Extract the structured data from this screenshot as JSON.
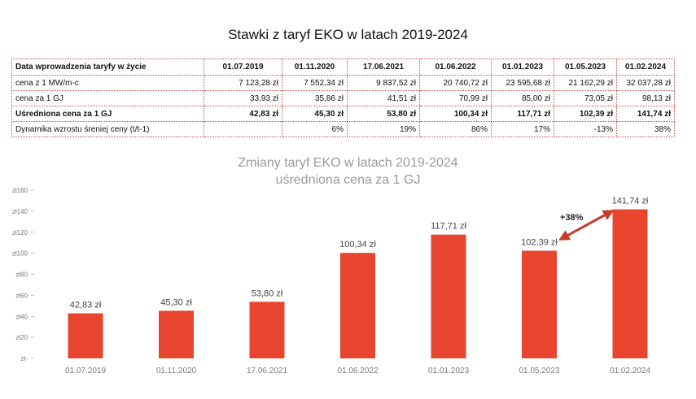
{
  "table": {
    "title": "Stawki z taryf EKO w latach 2019-2024",
    "header_label": "Data wprowadzenia taryfy w życie",
    "dates": [
      "01.07.2019",
      "01.11.2020",
      "17.06.2021",
      "01.06.2022",
      "01.01.2023",
      "01.05.2023",
      "01.02.2024"
    ],
    "rows": [
      {
        "label": "cena z 1 MW/m-c",
        "bold": false,
        "values": [
          "7 123,28 zł",
          "7 552,34 zł",
          "9 837,52 zł",
          "20 740,72 zł",
          "23 595,68 zł",
          "21 162,29 zł",
          "32 037,28 zł"
        ]
      },
      {
        "label": "cena za 1 GJ",
        "bold": false,
        "values": [
          "33,93 zł",
          "35,86 zł",
          "41,51 zł",
          "70,99 zł",
          "85,00 zł",
          "73,05 zł",
          "98,13 zł"
        ]
      },
      {
        "label": "Uśredniona cena za 1 GJ",
        "bold": true,
        "values": [
          "42,83 zł",
          "45,30 zł",
          "53,80 zł",
          "100,34 zł",
          "117,71 zł",
          "102,39 zł",
          "141,74 zł"
        ]
      },
      {
        "label": "Dynamika wzrostu śreniej ceny (t/t-1)",
        "bold": false,
        "values": [
          "",
          "6%",
          "19%",
          "86%",
          "17%",
          "-13%",
          "38%"
        ]
      }
    ]
  },
  "chart_data": {
    "type": "bar",
    "title": "Zmiany taryf EKO w latach 2019-2024",
    "subtitle": "uśredniona cena za 1 GJ",
    "categories": [
      "01.07.2019",
      "01.11.2020",
      "17.06.2021",
      "01.06.2022",
      "01.01.2023",
      "01.05.2023",
      "01.02.2024"
    ],
    "values": [
      42.83,
      45.3,
      53.8,
      100.34,
      117.71,
      102.39,
      141.74
    ],
    "data_labels": [
      "42,83 zł",
      "45,30 zł",
      "53,80 zł",
      "100,34 zł",
      "117,71 zł",
      "102,39 zł",
      "141,74 zł"
    ],
    "ylim": [
      0,
      160
    ],
    "yticks": [
      0,
      20,
      40,
      60,
      80,
      100,
      120,
      140,
      160
    ],
    "ytick_labels": [
      "zł-",
      "zł20",
      "zł40",
      "zł60",
      "zł80",
      "zł100",
      "zł120",
      "zł140",
      "zł160"
    ],
    "bar_color": "#e8452e",
    "grid": false,
    "annotation": {
      "text": "+38%",
      "from_index": 5,
      "to_index": 6,
      "color": "#c63b2a"
    }
  }
}
